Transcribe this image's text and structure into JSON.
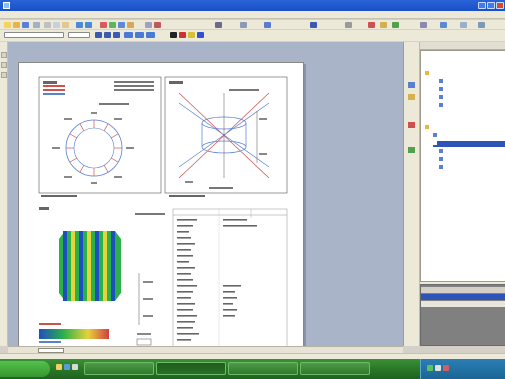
{
  "window": {
    "title": "",
    "colors": {
      "titlebar": "#2a63d8",
      "chrome": "#ece9d8",
      "workspace": "#a9b4c9",
      "taskbar": "#2b7a2a",
      "tray": "#1a6595"
    }
  },
  "menubar": {
    "items": [
      "",
      "",
      "",
      "",
      "",
      "",
      "",
      "",
      "",
      ""
    ]
  },
  "workspace": {
    "sheet_tab": "",
    "paper": {
      "section1_title": "",
      "section2_title": "",
      "section3_title": "",
      "table_header": [
        "",
        ""
      ]
    }
  },
  "tree": {
    "items": [
      {
        "label": "",
        "selected": false
      },
      {
        "label": "",
        "selected": false
      },
      {
        "label": "",
        "selected": false
      },
      {
        "label": "",
        "selected": false
      },
      {
        "label": "",
        "selected": false
      },
      {
        "label": "",
        "selected": false
      },
      {
        "label": "",
        "selected": false
      },
      {
        "label": "",
        "selected": true
      },
      {
        "label": "",
        "selected": false
      },
      {
        "label": "",
        "selected": false
      },
      {
        "label": "",
        "selected": false
      }
    ]
  },
  "properties": {
    "rows": [
      {
        "name": "",
        "value": "",
        "selected": false
      },
      {
        "name": "",
        "value": "",
        "selected": true
      },
      {
        "name": "",
        "value": "",
        "selected": false
      }
    ]
  },
  "taskbar": {
    "tasks": [
      "",
      "",
      "",
      ""
    ],
    "clock": ""
  }
}
